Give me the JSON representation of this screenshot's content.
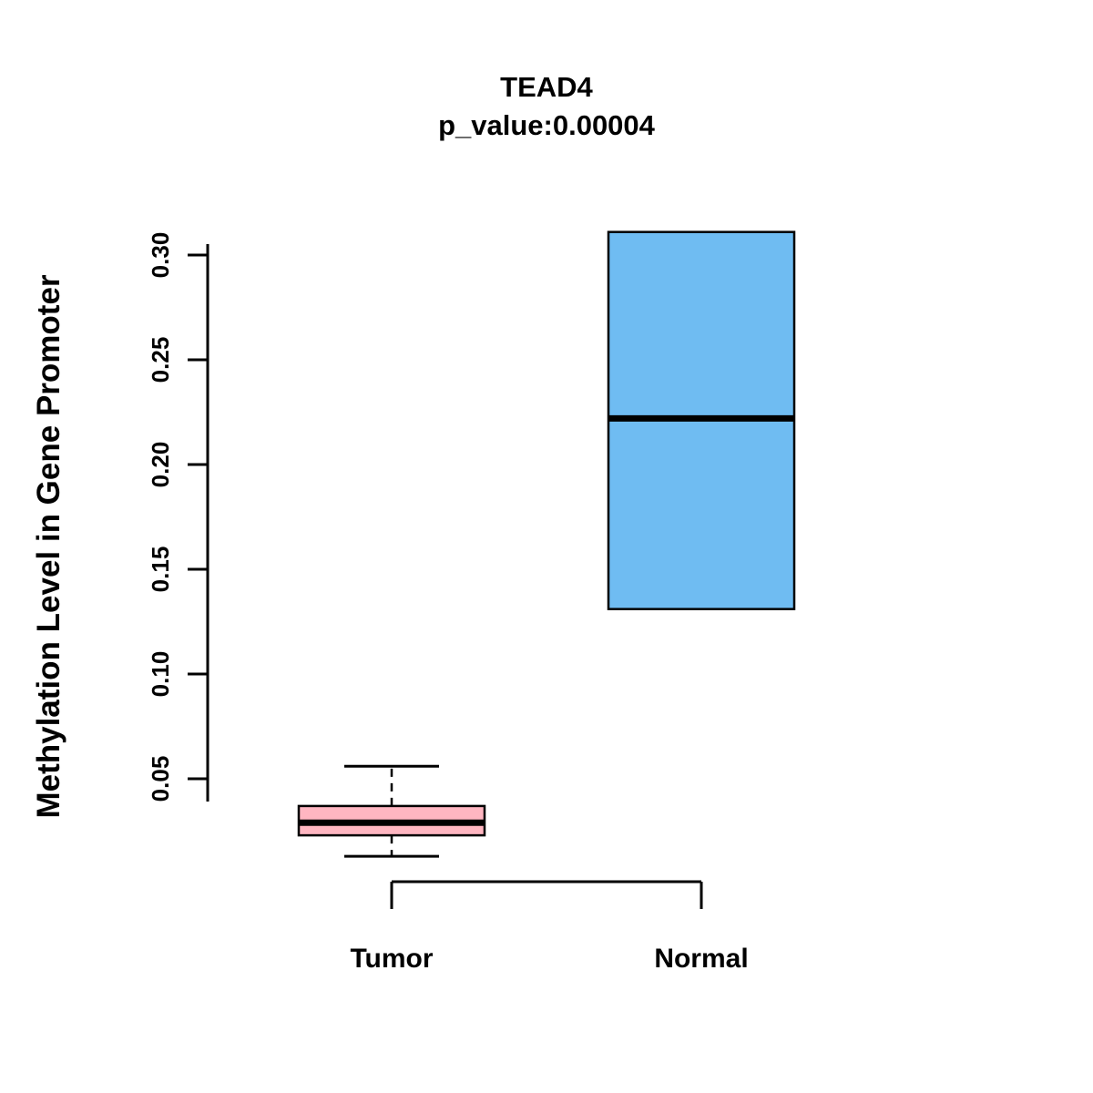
{
  "chart_data": {
    "type": "boxplot",
    "title": "TEAD4",
    "subtitle": "p_value:0.00004",
    "ylabel": "Methylation Level in Gene Promoter",
    "xlabel": "",
    "ylim": [
      0.0,
      0.32
    ],
    "yticks": [
      0.05,
      0.1,
      0.15,
      0.2,
      0.25,
      0.3
    ],
    "ytick_labels": [
      "0.05",
      "0.10",
      "0.15",
      "0.20",
      "0.25",
      "0.30"
    ],
    "grid": false,
    "legend": "none",
    "categories": [
      "Tumor",
      "Normal"
    ],
    "groups": [
      {
        "label": "Tumor",
        "fill_color": "#FFB6C1",
        "stroke_color": "#000000",
        "whisker_low": 0.013,
        "q1": 0.023,
        "median": 0.029,
        "q3": 0.037,
        "whisker_high": 0.056,
        "whisker_style": "dashed"
      },
      {
        "label": "Normal",
        "fill_color": "#6FBCF2",
        "stroke_color": "#000000",
        "whisker_low": 0.131,
        "q1": 0.131,
        "median": 0.222,
        "q3": 0.311,
        "whisker_high": 0.311,
        "whisker_style": "none"
      }
    ],
    "colors": {
      "tumor_fill": "#FFB6C1",
      "normal_fill": "#6FBCF2",
      "axis": "#000000",
      "background": "#ffffff"
    }
  }
}
